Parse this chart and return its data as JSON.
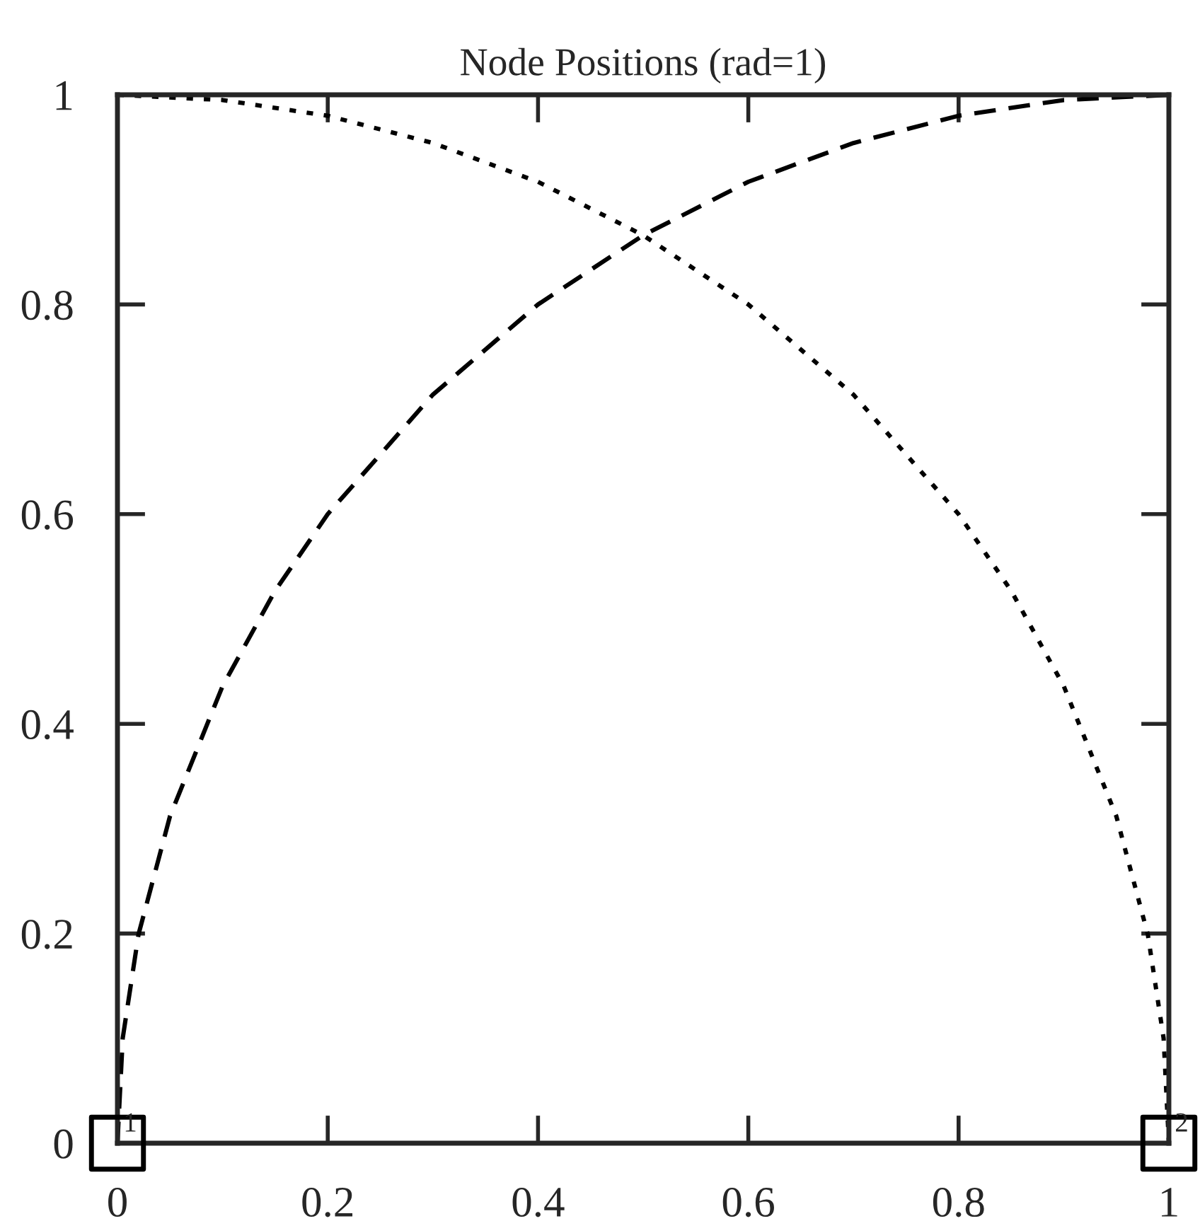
{
  "chart_data": {
    "type": "line",
    "title": "Node Positions (rad=1)",
    "series": [
      {
        "color": "#000000",
        "line_style": "dashed",
        "x": [
          0,
          0.005,
          0.02,
          0.05,
          0.1,
          0.15,
          0.2,
          0.3,
          0.4,
          0.5,
          0.6,
          0.7,
          0.8,
          0.9,
          1
        ],
        "values": [
          0,
          0.1,
          0.199,
          0.312,
          0.436,
          0.527,
          0.6,
          0.714,
          0.8,
          0.866,
          0.917,
          0.954,
          0.98,
          0.995,
          1
        ]
      },
      {
        "color": "#000000",
        "line_style": "dotted",
        "x": [
          0,
          0.1,
          0.2,
          0.3,
          0.4,
          0.5,
          0.6,
          0.7,
          0.8,
          0.85,
          0.9,
          0.95,
          0.98,
          0.995,
          1
        ],
        "values": [
          1,
          0.995,
          0.98,
          0.954,
          0.917,
          0.866,
          0.8,
          0.714,
          0.6,
          0.527,
          0.436,
          0.312,
          0.199,
          0.1,
          0
        ]
      },
      {
        "type": "scatter",
        "color": "#000000",
        "marker": "square",
        "x": [
          0,
          1
        ],
        "values": [
          0,
          0
        ]
      }
    ],
    "annotations": [
      {
        "text": "1",
        "x": 0,
        "y": 0
      },
      {
        "text": "2",
        "x": 1,
        "y": 0
      }
    ],
    "xlim": [
      0,
      1
    ],
    "xticks": [
      0,
      0.2,
      0.4,
      0.6,
      0.8,
      1
    ],
    "ylim": [
      0,
      1
    ],
    "yticks": [
      0,
      0.2,
      0.4,
      0.6,
      0.8,
      1
    ],
    "grid": false,
    "legend": false
  }
}
